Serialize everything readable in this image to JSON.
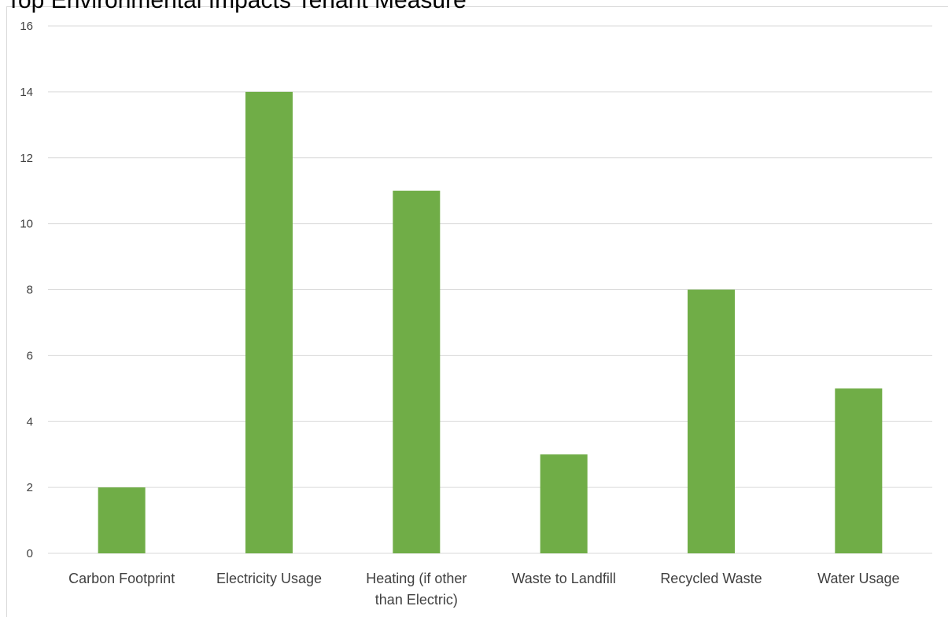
{
  "chart_data": {
    "type": "bar",
    "title": "Top Environmental Impacts Tenant Measure",
    "categories": [
      [
        "Carbon Footprint"
      ],
      [
        "Electricity Usage"
      ],
      [
        "Heating (if other",
        "than Electric)"
      ],
      [
        "Waste to Landfill"
      ],
      [
        "Recycled Waste"
      ],
      [
        "Water Usage"
      ]
    ],
    "values": [
      2,
      14,
      11,
      3,
      8,
      5
    ],
    "ylim": [
      0,
      16
    ],
    "yticks": [
      0,
      2,
      4,
      6,
      8,
      10,
      12,
      14,
      16
    ],
    "grid": true,
    "colors": {
      "bar": "#70ad47",
      "grid": "#d9d9d9",
      "text": "#404040"
    }
  }
}
